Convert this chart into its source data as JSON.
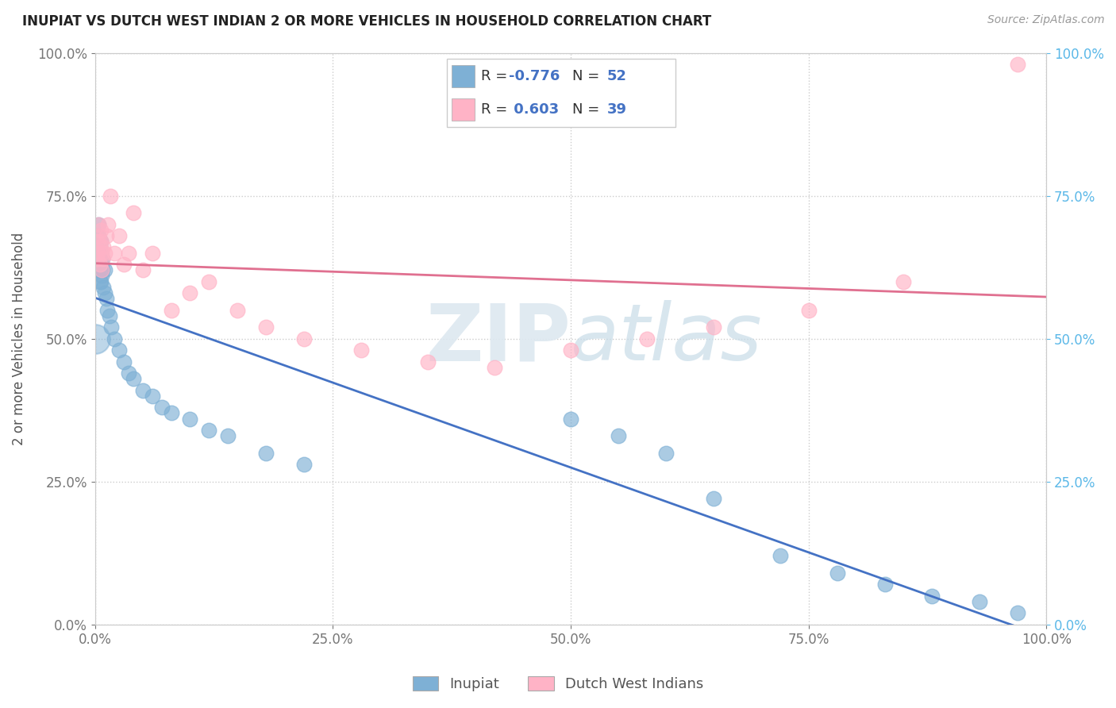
{
  "title": "INUPIAT VS DUTCH WEST INDIAN 2 OR MORE VEHICLES IN HOUSEHOLD CORRELATION CHART",
  "source": "Source: ZipAtlas.com",
  "ylabel": "2 or more Vehicles in Household",
  "xlim": [
    0.0,
    1.0
  ],
  "ylim": [
    0.0,
    1.0
  ],
  "xtick_vals": [
    0.0,
    0.25,
    0.5,
    0.75,
    1.0
  ],
  "ytick_vals": [
    0.0,
    0.25,
    0.5,
    0.75,
    1.0
  ],
  "inupiat_color": "#7EB0D5",
  "inupiat_line_color": "#4472C4",
  "dutch_color": "#FFB3C6",
  "dutch_line_color": "#E07090",
  "inupiat_R": -0.776,
  "inupiat_N": 52,
  "dutch_R": 0.603,
  "dutch_N": 39,
  "legend_label_inupiat": "Inupiat",
  "legend_label_dutch": "Dutch West Indians",
  "watermark_zip": "ZIP",
  "watermark_atlas": "atlas",
  "right_tick_color": "#5BB8E8",
  "inupiat_x": [
    0.001,
    0.002,
    0.002,
    0.003,
    0.003,
    0.003,
    0.004,
    0.004,
    0.004,
    0.004,
    0.005,
    0.005,
    0.005,
    0.006,
    0.006,
    0.006,
    0.006,
    0.007,
    0.007,
    0.008,
    0.008,
    0.009,
    0.01,
    0.01,
    0.012,
    0.013,
    0.015,
    0.017,
    0.02,
    0.025,
    0.03,
    0.035,
    0.04,
    0.05,
    0.06,
    0.07,
    0.08,
    0.1,
    0.12,
    0.14,
    0.18,
    0.22,
    0.5,
    0.55,
    0.6,
    0.65,
    0.72,
    0.78,
    0.83,
    0.88,
    0.93,
    0.97
  ],
  "inupiat_y": [
    0.64,
    0.66,
    0.62,
    0.68,
    0.65,
    0.63,
    0.7,
    0.68,
    0.65,
    0.62,
    0.66,
    0.64,
    0.6,
    0.67,
    0.65,
    0.62,
    0.6,
    0.63,
    0.61,
    0.64,
    0.62,
    0.59,
    0.62,
    0.58,
    0.57,
    0.55,
    0.54,
    0.52,
    0.5,
    0.48,
    0.46,
    0.44,
    0.43,
    0.41,
    0.4,
    0.38,
    0.37,
    0.36,
    0.34,
    0.33,
    0.3,
    0.28,
    0.36,
    0.33,
    0.3,
    0.22,
    0.12,
    0.09,
    0.07,
    0.05,
    0.04,
    0.02
  ],
  "dutch_x": [
    0.002,
    0.003,
    0.003,
    0.004,
    0.004,
    0.005,
    0.005,
    0.006,
    0.006,
    0.007,
    0.007,
    0.008,
    0.009,
    0.01,
    0.012,
    0.014,
    0.016,
    0.02,
    0.025,
    0.03,
    0.035,
    0.04,
    0.05,
    0.06,
    0.08,
    0.1,
    0.12,
    0.15,
    0.18,
    0.22,
    0.28,
    0.35,
    0.42,
    0.5,
    0.58,
    0.65,
    0.75,
    0.85,
    0.97
  ],
  "dutch_y": [
    0.64,
    0.67,
    0.65,
    0.7,
    0.68,
    0.66,
    0.63,
    0.69,
    0.67,
    0.65,
    0.62,
    0.64,
    0.66,
    0.65,
    0.68,
    0.7,
    0.75,
    0.65,
    0.68,
    0.63,
    0.65,
    0.72,
    0.62,
    0.65,
    0.55,
    0.58,
    0.6,
    0.55,
    0.52,
    0.5,
    0.48,
    0.46,
    0.45,
    0.48,
    0.5,
    0.52,
    0.55,
    0.6,
    0.98
  ]
}
